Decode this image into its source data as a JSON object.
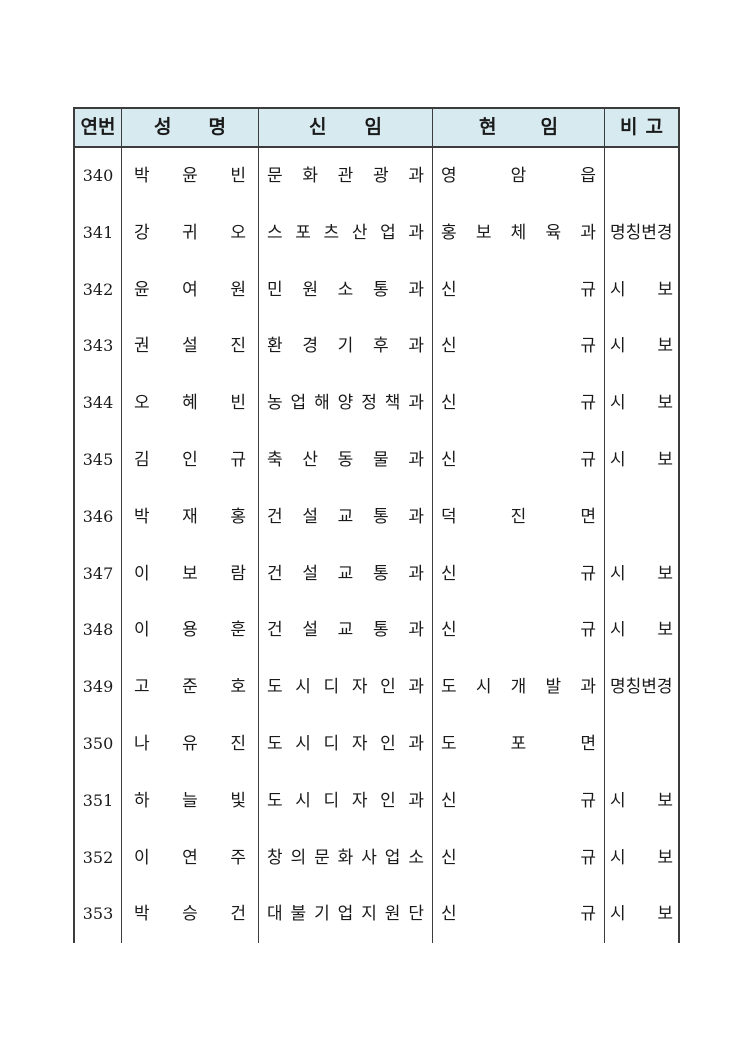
{
  "table": {
    "header": {
      "no": "연번",
      "name": "성 명",
      "new": "신 임",
      "cur": "현 임",
      "note": "비 고"
    },
    "rows": [
      {
        "no": "340",
        "name": "박 윤 빈",
        "new": "문 화 관 광 과",
        "cur": "영 암 읍",
        "note": ""
      },
      {
        "no": "341",
        "name": "강 귀 오",
        "new": "스 포 츠 산 업 과",
        "cur": "홍 보 체 육 과",
        "note": "명칭변경"
      },
      {
        "no": "342",
        "name": "윤 여 원",
        "new": "민 원 소 통 과",
        "cur": "신 규",
        "note": "시 보"
      },
      {
        "no": "343",
        "name": "권 설 진",
        "new": "환 경 기 후 과",
        "cur": "신 규",
        "note": "시 보"
      },
      {
        "no": "344",
        "name": "오 혜 빈",
        "new": "농 업 해 양 정 책 과",
        "cur": "신 규",
        "note": "시 보"
      },
      {
        "no": "345",
        "name": "김 인 규",
        "new": "축 산 동 물 과",
        "cur": "신 규",
        "note": "시 보"
      },
      {
        "no": "346",
        "name": "박 재 홍",
        "new": "건 설 교 통 과",
        "cur": "덕 진 면",
        "note": ""
      },
      {
        "no": "347",
        "name": "이 보 람",
        "new": "건 설 교 통 과",
        "cur": "신 규",
        "note": "시 보"
      },
      {
        "no": "348",
        "name": "이 용 훈",
        "new": "건 설 교 통 과",
        "cur": "신 규",
        "note": "시 보"
      },
      {
        "no": "349",
        "name": "고 준 호",
        "new": "도 시 디 자 인 과",
        "cur": "도 시 개 발 과",
        "note": "명칭변경"
      },
      {
        "no": "350",
        "name": "나 유 진",
        "new": "도 시 디 자 인 과",
        "cur": "도 포 면",
        "note": ""
      },
      {
        "no": "351",
        "name": "하 늘 빛",
        "new": "도 시 디 자 인 과",
        "cur": "신 규",
        "note": "시 보"
      },
      {
        "no": "352",
        "name": "이 연 주",
        "new": "창 의 문 화 사 업 소",
        "cur": "신 규",
        "note": "시 보"
      },
      {
        "no": "353",
        "name": "박 승 건",
        "new": "대 불 기 업 지 원 단",
        "cur": "신 규",
        "note": "시 보"
      }
    ]
  },
  "colors": {
    "header_bg": "#d6eaf0",
    "border": "#3c3c3c",
    "text": "#1a1a1a"
  }
}
